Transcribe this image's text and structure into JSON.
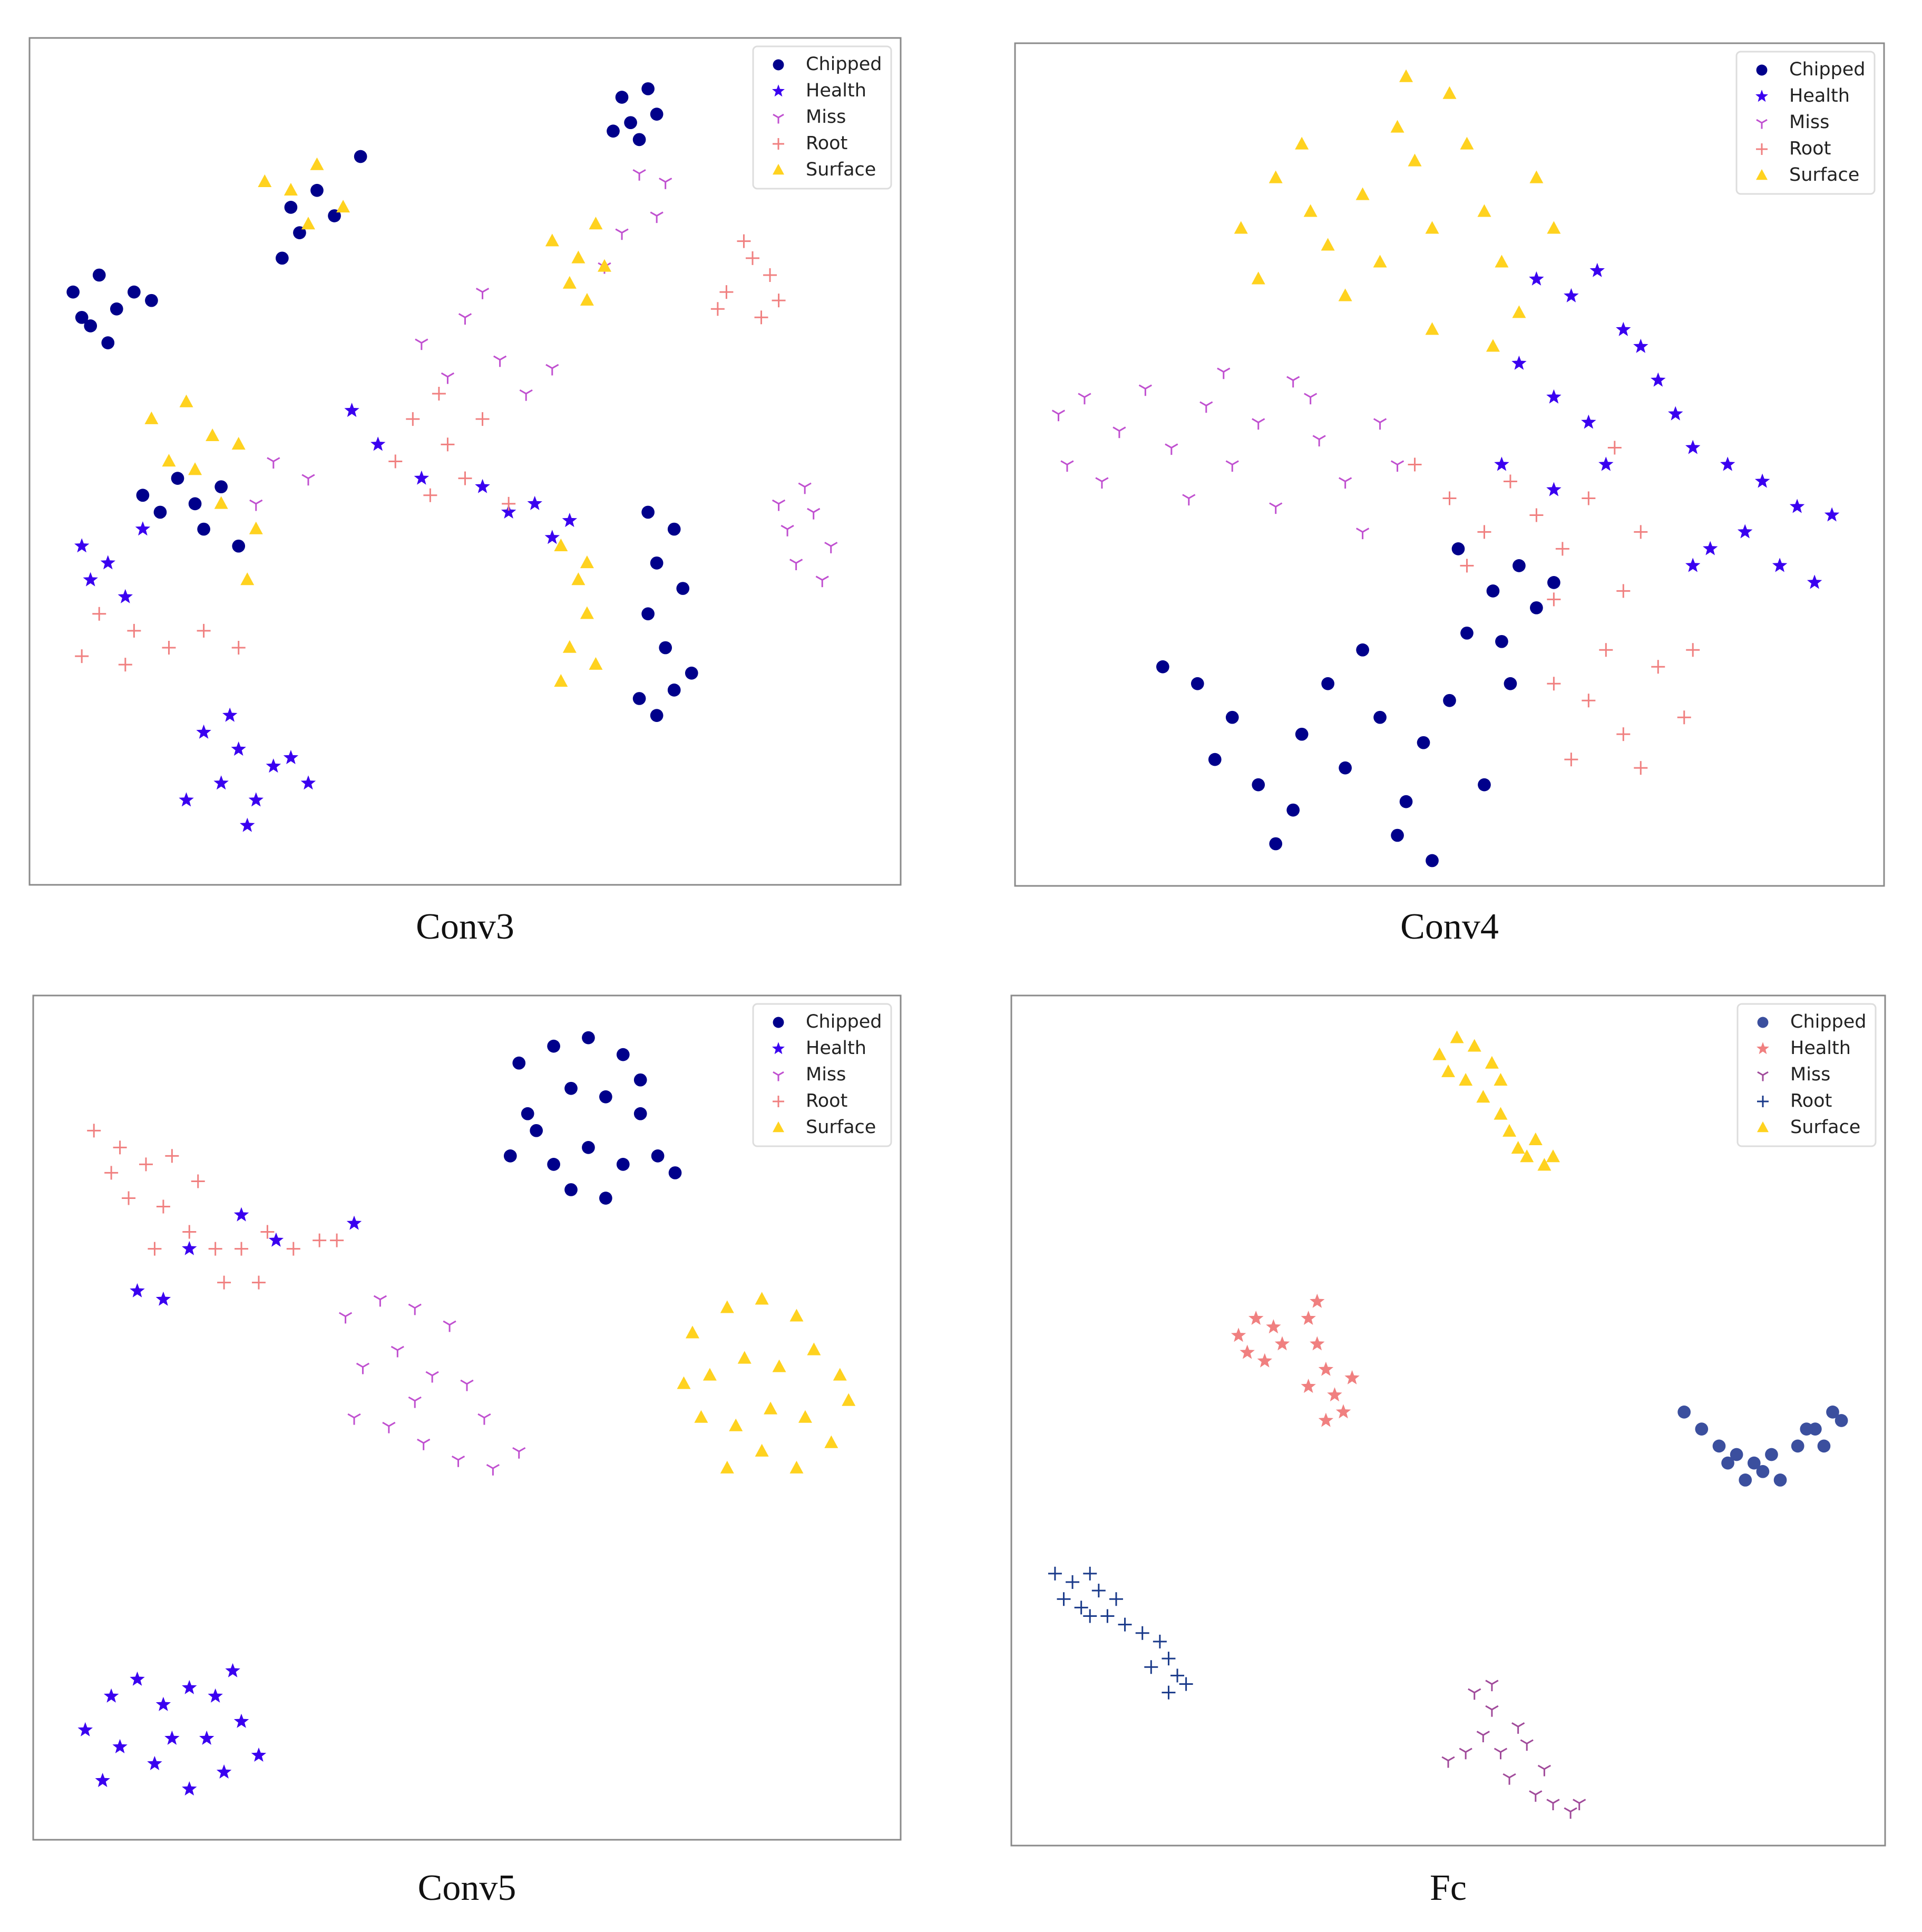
{
  "chart_data": [
    {
      "type": "scatter",
      "title": "Conv3",
      "xlim": [
        0,
        100
      ],
      "ylim": [
        0,
        100
      ],
      "legend": "upper right",
      "series": [
        {
          "name": "Chipped",
          "color": "#00008b",
          "marker": "circle",
          "x": [
            68,
            71,
            69,
            72,
            70,
            67,
            5,
            8,
            10,
            7,
            12,
            9,
            14,
            6,
            30,
            33,
            31,
            35,
            29,
            38,
            17,
            19,
            22,
            15,
            20,
            24,
            13,
            71,
            74,
            72,
            75,
            71,
            73,
            76,
            70,
            72,
            74
          ],
          "values": [
            93,
            94,
            90,
            91,
            88,
            89,
            70,
            72,
            68,
            66,
            70,
            64,
            69,
            67,
            80,
            82,
            77,
            79,
            74,
            86,
            48,
            45,
            47,
            44,
            42,
            40,
            46,
            44,
            42,
            38,
            35,
            32,
            28,
            25,
            22,
            20,
            23
          ]
        },
        {
          "name": "Health",
          "color": "#3a00f0",
          "marker": "star",
          "x": [
            20,
            24,
            28,
            22,
            26,
            30,
            18,
            25,
            32,
            23,
            55,
            58,
            62,
            60,
            52,
            40,
            45,
            37,
            6,
            9,
            11,
            7,
            13
          ],
          "values": [
            18,
            16,
            14,
            12,
            10,
            15,
            10,
            7,
            12,
            20,
            44,
            45,
            43,
            41,
            47,
            52,
            48,
            56,
            40,
            38,
            34,
            36,
            42
          ]
        },
        {
          "name": "Miss",
          "color": "#c050d0",
          "marker": "tri",
          "x": [
            87,
            90,
            92,
            88,
            91,
            86,
            89,
            45,
            50,
            54,
            48,
            57,
            60,
            52,
            70,
            72,
            68,
            66,
            73,
            28,
            32,
            26
          ],
          "values": [
            42,
            44,
            40,
            38,
            36,
            45,
            47,
            64,
            67,
            62,
            60,
            58,
            61,
            70,
            84,
            79,
            77,
            73,
            83,
            50,
            48,
            45
          ]
        },
        {
          "name": "Root",
          "color": "#f08080",
          "marker": "plus",
          "x": [
            80,
            83,
            85,
            79,
            84,
            82,
            86,
            44,
            48,
            50,
            46,
            52,
            42,
            55,
            47,
            8,
            12,
            16,
            20,
            11,
            6,
            24
          ],
          "values": [
            70,
            74,
            72,
            68,
            67,
            76,
            69,
            55,
            52,
            48,
            46,
            55,
            50,
            45,
            58,
            32,
            30,
            28,
            30,
            26,
            27,
            28
          ]
        },
        {
          "name": "Surface",
          "color": "#ffd21f",
          "marker": "triangle",
          "x": [
            60,
            63,
            66,
            62,
            65,
            64,
            61,
            63,
            64,
            62,
            65,
            61,
            64,
            14,
            18,
            21,
            16,
            24,
            19,
            22,
            26,
            25,
            30,
            33,
            32,
            36,
            27
          ],
          "values": [
            76,
            74,
            73,
            71,
            78,
            69,
            40,
            36,
            32,
            28,
            26,
            24,
            38,
            55,
            57,
            53,
            50,
            52,
            49,
            45,
            42,
            36,
            82,
            85,
            78,
            80,
            83
          ]
        }
      ]
    },
    {
      "type": "scatter",
      "title": "Conv4",
      "xlim": [
        0,
        100
      ],
      "ylim": [
        0,
        100
      ],
      "legend": "upper right",
      "series": [
        {
          "name": "Chipped",
          "color": "#00008b",
          "marker": "circle",
          "x": [
            17,
            21,
            25,
            23,
            28,
            32,
            33,
            36,
            40,
            38,
            42,
            45,
            47,
            50,
            44,
            52,
            55,
            58,
            60,
            62,
            48,
            30,
            54,
            57,
            51,
            56
          ],
          "values": [
            26,
            24,
            20,
            15,
            12,
            9,
            18,
            24,
            28,
            14,
            20,
            10,
            17,
            22,
            6,
            30,
            35,
            38,
            33,
            36,
            3,
            5,
            12,
            24,
            40,
            29
          ]
        },
        {
          "name": "Health",
          "color": "#3a00f0",
          "marker": "star",
          "x": [
            60,
            64,
            67,
            70,
            72,
            58,
            62,
            66,
            74,
            78,
            82,
            86,
            90,
            84,
            80,
            88,
            94,
            76,
            68,
            56,
            62,
            92,
            78
          ],
          "values": [
            72,
            70,
            73,
            66,
            64,
            62,
            58,
            55,
            60,
            52,
            50,
            48,
            45,
            42,
            40,
            38,
            44,
            56,
            50,
            50,
            47,
            36,
            38
          ]
        },
        {
          "name": "Miss",
          "color": "#c050d0",
          "marker": "tri",
          "x": [
            5,
            8,
            12,
            15,
            18,
            22,
            25,
            28,
            32,
            35,
            38,
            42,
            10,
            20,
            30,
            40,
            44,
            6,
            24,
            34
          ],
          "values": [
            56,
            58,
            54,
            59,
            52,
            57,
            50,
            55,
            60,
            53,
            48,
            55,
            48,
            46,
            45,
            42,
            50,
            50,
            61,
            58
          ]
        },
        {
          "name": "Root",
          "color": "#f08080",
          "marker": "plus",
          "x": [
            46,
            50,
            54,
            57,
            60,
            63,
            66,
            69,
            72,
            52,
            62,
            70,
            62,
            66,
            70,
            74,
            77,
            64,
            72,
            78,
            68
          ],
          "values": [
            50,
            46,
            42,
            48,
            44,
            40,
            46,
            52,
            42,
            38,
            34,
            35,
            24,
            22,
            18,
            26,
            20,
            15,
            14,
            28,
            28
          ]
        },
        {
          "name": "Surface",
          "color": "#ffd21f",
          "marker": "triangle",
          "x": [
            26,
            28,
            30,
            33,
            36,
            38,
            40,
            44,
            46,
            48,
            50,
            52,
            54,
            56,
            58,
            60,
            62,
            42,
            34,
            48,
            55,
            45
          ],
          "values": [
            78,
            72,
            84,
            88,
            76,
            70,
            82,
            90,
            86,
            78,
            94,
            88,
            80,
            74,
            68,
            84,
            78,
            74,
            80,
            66,
            64,
            96
          ]
        }
      ]
    },
    {
      "type": "scatter",
      "title": "Conv5",
      "xlim": [
        0,
        100
      ],
      "ylim": [
        0,
        100
      ],
      "legend": "upper right",
      "series": [
        {
          "name": "Chipped",
          "color": "#00008b",
          "marker": "circle",
          "x": [
            56,
            60,
            64,
            68,
            62,
            66,
            70,
            58,
            55,
            60,
            64,
            68,
            72,
            74,
            62,
            66,
            57,
            70
          ],
          "values": [
            92,
            94,
            95,
            93,
            89,
            88,
            86,
            84,
            81,
            80,
            82,
            80,
            81,
            79,
            77,
            76,
            86,
            90
          ]
        },
        {
          "name": "Health",
          "color": "#3a00f0",
          "marker": "star",
          "x": [
            6,
            9,
            12,
            15,
            18,
            21,
            24,
            26,
            22,
            18,
            14,
            10,
            16,
            20,
            23,
            8,
            12,
            15,
            24,
            28,
            37,
            18
          ],
          "values": [
            13,
            17,
            19,
            16,
            18,
            17,
            14,
            10,
            8,
            6,
            9,
            11,
            12,
            12,
            20,
            7,
            65,
            64,
            74,
            71,
            73,
            70
          ]
        },
        {
          "name": "Miss",
          "color": "#c050d0",
          "marker": "tri",
          "x": [
            36,
            40,
            44,
            48,
            38,
            42,
            46,
            50,
            37,
            41,
            45,
            49,
            53,
            56,
            44,
            52
          ],
          "values": [
            62,
            64,
            63,
            61,
            56,
            58,
            55,
            54,
            50,
            49,
            47,
            45,
            44,
            46,
            52,
            50
          ]
        },
        {
          "name": "Root",
          "color": "#f08080",
          "marker": "plus",
          "x": [
            7,
            10,
            13,
            16,
            19,
            11,
            15,
            18,
            21,
            24,
            27,
            30,
            33,
            22,
            26,
            14,
            9,
            35
          ],
          "values": [
            84,
            82,
            80,
            81,
            78,
            76,
            75,
            72,
            70,
            70,
            72,
            70,
            71,
            66,
            66,
            70,
            79,
            71
          ]
        },
        {
          "name": "Surface",
          "color": "#ffd21f",
          "marker": "triangle",
          "x": [
            76,
            80,
            84,
            88,
            78,
            82,
            86,
            90,
            93,
            77,
            81,
            85,
            89,
            94,
            80,
            84,
            88,
            92,
            75
          ],
          "values": [
            60,
            63,
            64,
            62,
            55,
            57,
            56,
            58,
            55,
            50,
            49,
            51,
            50,
            52,
            44,
            46,
            44,
            47,
            54
          ]
        }
      ]
    },
    {
      "type": "scatter",
      "title": "Fc",
      "xlim": [
        0,
        100
      ],
      "ylim": [
        0,
        100
      ],
      "legend": "upper right",
      "series": [
        {
          "name": "Chipped",
          "color": "#3b4f9e",
          "marker": "circle",
          "x": [
            77,
            79,
            81,
            83,
            85,
            86,
            84,
            82,
            88,
            90,
            92,
            94,
            95,
            93,
            91,
            87
          ],
          "values": [
            51,
            49,
            47,
            46,
            45,
            44,
            43,
            45,
            43,
            47,
            49,
            51,
            50,
            47,
            49,
            46
          ]
        },
        {
          "name": "Health",
          "color": "#f08080",
          "marker": "star",
          "x": [
            26,
            28,
            30,
            27,
            29,
            31,
            34,
            35,
            36,
            37,
            38,
            36,
            34,
            35,
            39
          ],
          "values": [
            60,
            62,
            61,
            58,
            57,
            59,
            62,
            59,
            56,
            53,
            51,
            50,
            54,
            64,
            55
          ]
        },
        {
          "name": "Miss",
          "color": "#a04a9a",
          "marker": "tri",
          "x": [
            53,
            55,
            54,
            52,
            50,
            56,
            57,
            59,
            60,
            62,
            64,
            61,
            55,
            58,
            65
          ],
          "values": [
            18,
            16,
            13,
            11,
            10,
            11,
            8,
            12,
            6,
            5,
            4,
            9,
            19,
            14,
            5
          ]
        },
        {
          "name": "Root",
          "color": "#1a3a8a",
          "marker": "plus",
          "x": [
            5,
            7,
            9,
            6,
            8,
            10,
            12,
            11,
            13,
            15,
            17,
            18,
            19,
            20,
            16,
            18,
            9
          ],
          "values": [
            32,
            31,
            32,
            29,
            28,
            30,
            29,
            27,
            26,
            25,
            24,
            22,
            20,
            19,
            21,
            18,
            27
          ]
        },
        {
          "name": "Surface",
          "color": "#ffd21f",
          "marker": "triangle",
          "x": [
            49,
            51,
            53,
            55,
            52,
            54,
            56,
            57,
            58,
            59,
            60,
            61,
            62,
            56,
            50
          ],
          "values": [
            93,
            95,
            94,
            92,
            90,
            88,
            86,
            84,
            82,
            81,
            83,
            80,
            81,
            90,
            91
          ]
        }
      ]
    }
  ]
}
